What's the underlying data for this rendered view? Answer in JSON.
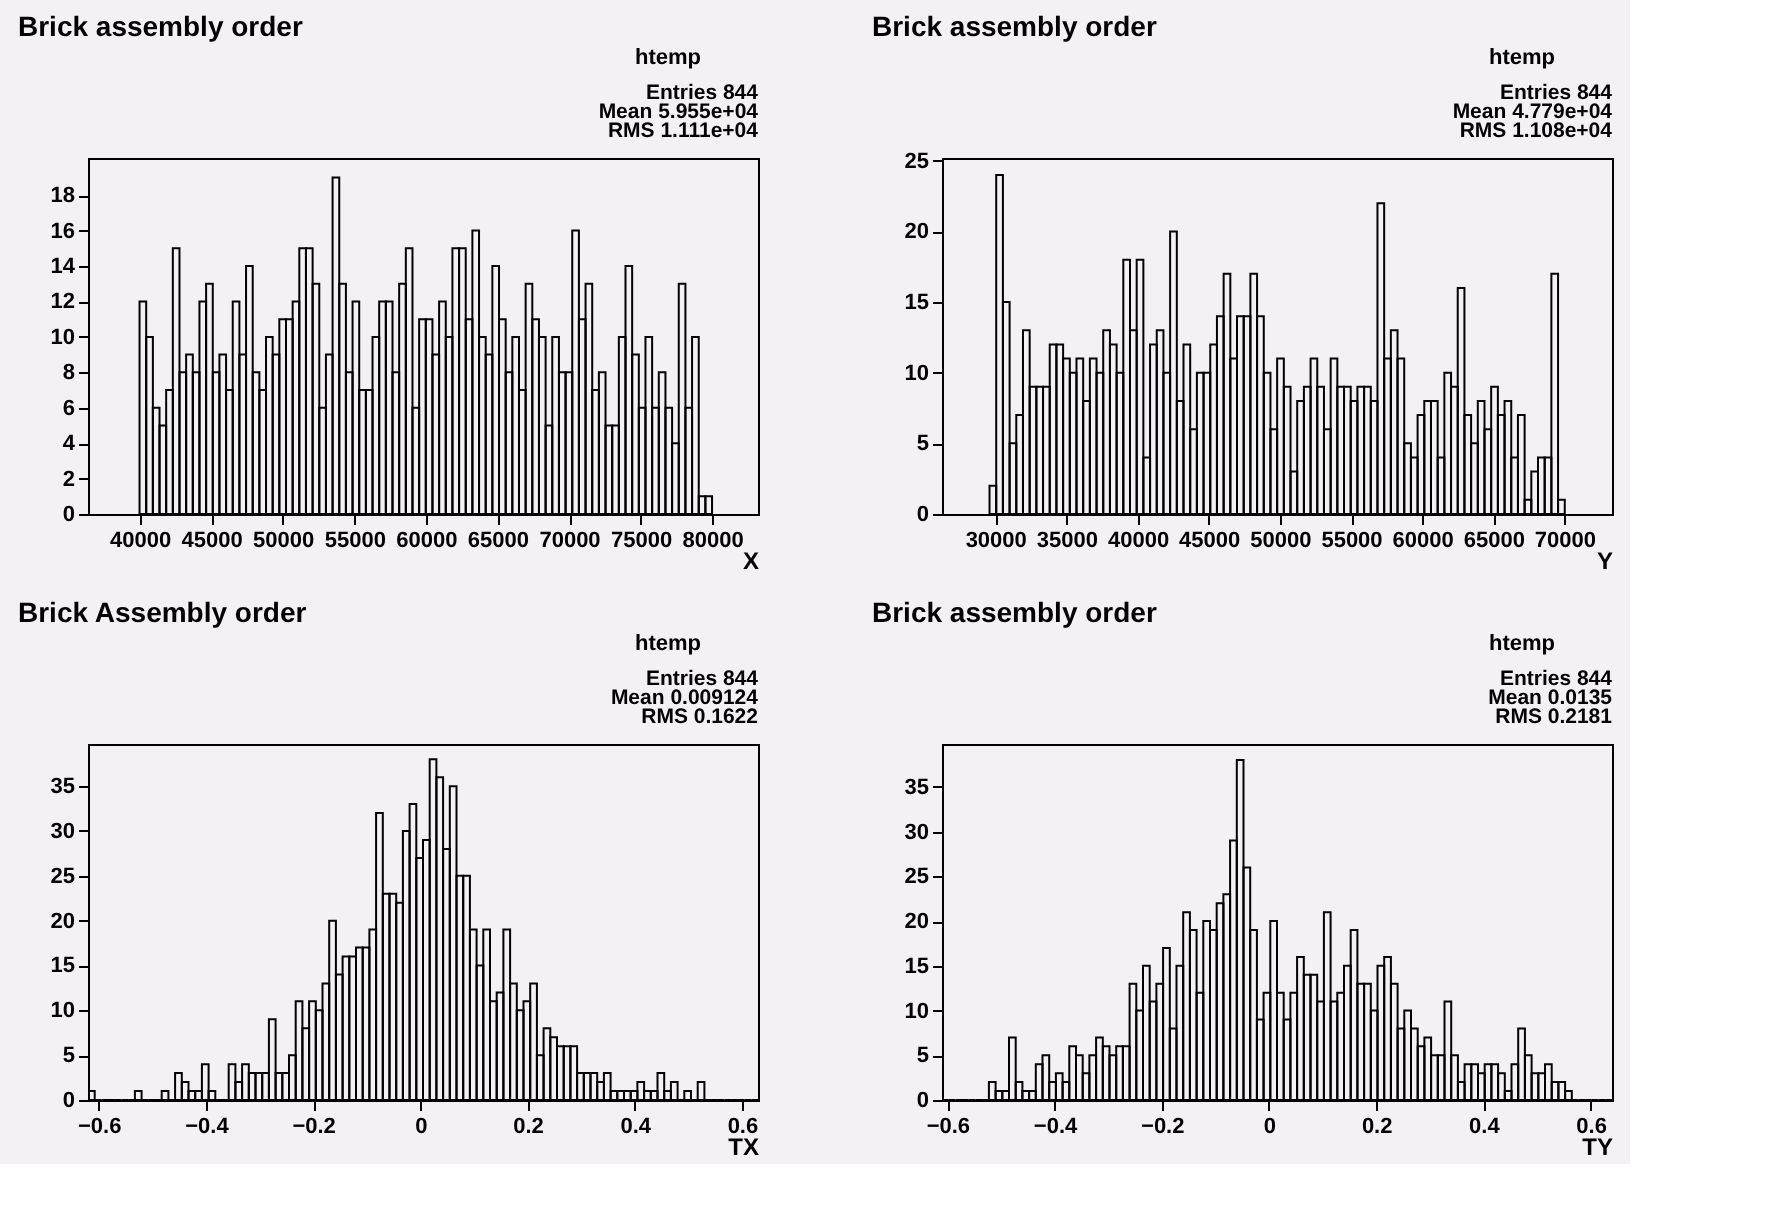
{
  "chart_data": [
    {
      "type": "histogram",
      "title": "Brick assembly order",
      "xlabel": "X",
      "color": "#000000",
      "grid": false,
      "annotations": [
        "htemp",
        "Entries 844",
        "Mean 5.955e+04",
        "RMS 1.111e+04"
      ],
      "xlim": [
        36400,
        83200
      ],
      "xticks": [
        40000,
        45000,
        50000,
        55000,
        60000,
        65000,
        70000,
        75000,
        80000
      ],
      "ylim": [
        0,
        20.1
      ],
      "yticks": [
        0,
        2,
        4,
        6,
        8,
        10,
        12,
        14,
        16,
        18
      ],
      "bins": [
        40000,
        40465,
        40930,
        41395,
        41860,
        42325,
        42790,
        43255,
        43720,
        44185,
        44650,
        45115,
        45580,
        46045,
        46510,
        46975,
        47440,
        47905,
        48370,
        48835,
        49300,
        49765,
        50230,
        50695,
        51160,
        51625,
        52090,
        52555,
        53020,
        53485,
        53950,
        54415,
        54880,
        55345,
        55810,
        56275,
        56740,
        57205,
        57670,
        58135,
        58600,
        59065,
        59530,
        59995,
        60460,
        60925,
        61390,
        61855,
        62320,
        62785,
        63250,
        63715,
        64180,
        64645,
        65110,
        65575,
        66040,
        66505,
        66970,
        67435,
        67900,
        68365,
        68830,
        69295,
        69760,
        70225,
        70690,
        71155,
        71620,
        72085,
        72550,
        73015,
        73480,
        73945,
        74410,
        74875,
        75340,
        75805,
        76270,
        76735,
        77200,
        77665,
        78130,
        78595,
        79060,
        79525,
        79990
      ],
      "values": [
        12,
        10,
        6,
        5,
        7,
        15,
        8,
        9,
        8,
        12,
        13,
        8,
        9,
        7,
        12,
        9,
        14,
        8,
        7,
        10,
        9,
        11,
        11,
        12,
        15,
        15,
        13,
        6,
        9,
        19,
        13,
        8,
        12,
        7,
        7,
        10,
        12,
        12,
        8,
        13,
        15,
        6,
        11,
        11,
        9,
        12,
        10,
        15,
        15,
        11,
        16,
        10,
        9,
        14,
        11,
        8,
        10,
        7,
        13,
        11,
        10,
        5,
        10,
        8,
        8,
        16,
        11,
        13,
        7,
        8,
        5,
        5,
        10,
        14,
        9,
        6,
        10,
        6,
        8,
        6,
        4,
        13,
        6,
        10,
        1,
        1
      ]
    },
    {
      "type": "histogram",
      "title": "Brick assembly order",
      "xlabel": "Y",
      "color": "#000000",
      "grid": false,
      "annotations": [
        "htemp",
        "Entries 844",
        "Mean 4.779e+04",
        "RMS 1.108e+04"
      ],
      "xlim": [
        26260,
        73340
      ],
      "xticks": [
        30000,
        35000,
        40000,
        45000,
        50000,
        55000,
        60000,
        65000,
        70000
      ],
      "ylim": [
        0,
        25.2
      ],
      "yticks": [
        0,
        5,
        10,
        15,
        20,
        25
      ],
      "bins": [
        29600,
        30070,
        30540,
        31010,
        31480,
        31950,
        32420,
        32890,
        33360,
        33830,
        34300,
        34770,
        35240,
        35710,
        36180,
        36650,
        37120,
        37590,
        38060,
        38530,
        39000,
        39470,
        39940,
        40410,
        40880,
        41350,
        41820,
        42290,
        42760,
        43230,
        43700,
        44170,
        44640,
        45110,
        45580,
        46050,
        46520,
        46990,
        47460,
        47930,
        48400,
        48870,
        49340,
        49810,
        50280,
        50750,
        51220,
        51690,
        52160,
        52630,
        53100,
        53570,
        54040,
        54510,
        54980,
        55450,
        55920,
        56390,
        56860,
        57330,
        57800,
        58270,
        58740,
        59210,
        59680,
        60150,
        60620,
        61090,
        61560,
        62030,
        62500,
        62970,
        63440,
        63910,
        64380,
        64850,
        65320,
        65790,
        66260,
        66730,
        67200,
        67670,
        68140,
        68610,
        69080,
        69550,
        70020
      ],
      "values": [
        2,
        24,
        15,
        5,
        7,
        13,
        9,
        9,
        9,
        12,
        12,
        11,
        10,
        11,
        8,
        11,
        10,
        13,
        12,
        10,
        18,
        13,
        18,
        4,
        12,
        13,
        10,
        20,
        8,
        12,
        6,
        10,
        10,
        12,
        14,
        17,
        11,
        14,
        14,
        17,
        14,
        10,
        6,
        11,
        9,
        3,
        8,
        9,
        11,
        9,
        6,
        11,
        9,
        9,
        8,
        9,
        9,
        8,
        22,
        11,
        13,
        11,
        5,
        4,
        7,
        8,
        8,
        4,
        10,
        9,
        16,
        7,
        5,
        8,
        6,
        9,
        7,
        8,
        4,
        7,
        1,
        3,
        4,
        4,
        17,
        1
      ]
    },
    {
      "type": "histogram",
      "title": "Brick Assembly order",
      "xlabel": "TX",
      "color": "#000000",
      "grid": false,
      "annotations": [
        "htemp",
        "Entries 844",
        "Mean 0.009124",
        "RMS 0.1622"
      ],
      "xlim": [
        -0.62,
        0.63
      ],
      "xticks": [
        -0.6,
        -0.4,
        -0.2,
        0,
        0.2,
        0.4,
        0.6
      ],
      "ylim": [
        0,
        39.7
      ],
      "yticks": [
        0,
        5,
        10,
        15,
        20,
        25,
        30,
        35
      ],
      "bins": [
        -0.62,
        -0.6075,
        -0.595,
        -0.5825,
        -0.57,
        -0.5575,
        -0.545,
        -0.5325,
        -0.52,
        -0.5075,
        -0.495,
        -0.4825,
        -0.47,
        -0.4575,
        -0.445,
        -0.4325,
        -0.42,
        -0.4075,
        -0.395,
        -0.3825,
        -0.37,
        -0.3575,
        -0.345,
        -0.3325,
        -0.32,
        -0.3075,
        -0.295,
        -0.2825,
        -0.27,
        -0.2575,
        -0.245,
        -0.2325,
        -0.22,
        -0.2075,
        -0.195,
        -0.1825,
        -0.17,
        -0.1575,
        -0.145,
        -0.1325,
        -0.12,
        -0.1075,
        -0.095,
        -0.0825,
        -0.07,
        -0.0575,
        -0.045,
        -0.0325,
        -0.02,
        -0.0075,
        0.005,
        0.0175,
        0.03,
        0.0425,
        0.055,
        0.0675,
        0.08,
        0.0925,
        0.105,
        0.1175,
        0.13,
        0.1425,
        0.155,
        0.1675,
        0.18,
        0.1925,
        0.205,
        0.2175,
        0.23,
        0.2425,
        0.255,
        0.2675,
        0.28,
        0.2925,
        0.305,
        0.3175,
        0.33,
        0.3425,
        0.355,
        0.3675,
        0.38,
        0.3925,
        0.405,
        0.4175,
        0.43,
        0.4425,
        0.455,
        0.4675,
        0.48,
        0.4925,
        0.505,
        0.5175,
        0.53,
        0.5425,
        0.555,
        0.5675,
        0.58,
        0.5925,
        0.605,
        0.6175,
        0.63
      ],
      "values": [
        1,
        0,
        0,
        0,
        0,
        0,
        0,
        1,
        0,
        0,
        0,
        1,
        0,
        3,
        2,
        1,
        1,
        4,
        1,
        0,
        0,
        4,
        2,
        4,
        3,
        3,
        3,
        9,
        3,
        3,
        5,
        11,
        8,
        11,
        10,
        13,
        20,
        14,
        16,
        16,
        17,
        17,
        19,
        32,
        23,
        23,
        22,
        30,
        33,
        27,
        29,
        38,
        36,
        28,
        35,
        25,
        25,
        19,
        15,
        19,
        11,
        12,
        19,
        13,
        10,
        11,
        13,
        5,
        8,
        7,
        6,
        6,
        6,
        3,
        3,
        3,
        2,
        3,
        1,
        1,
        1,
        1,
        2,
        1,
        1,
        3,
        1,
        2,
        0,
        1,
        0,
        2,
        0,
        0,
        0,
        0,
        0,
        0,
        0,
        0
      ]
    },
    {
      "type": "histogram",
      "title": "Brick assembly order",
      "xlabel": "TY",
      "color": "#000000",
      "grid": false,
      "annotations": [
        "htemp",
        "Entries 844",
        "Mean 0.0135",
        "RMS 0.2181"
      ],
      "xlim": [
        -0.61,
        0.64
      ],
      "xticks": [
        -0.6,
        -0.4,
        -0.2,
        0,
        0.2,
        0.4,
        0.6
      ],
      "ylim": [
        0,
        39.8
      ],
      "yticks": [
        0,
        5,
        10,
        15,
        20,
        25,
        30,
        35
      ],
      "bins": [
        -0.61,
        -0.5975,
        -0.585,
        -0.5725,
        -0.56,
        -0.5475,
        -0.535,
        -0.5225,
        -0.51,
        -0.4975,
        -0.485,
        -0.4725,
        -0.46,
        -0.4475,
        -0.435,
        -0.4225,
        -0.41,
        -0.3975,
        -0.385,
        -0.3725,
        -0.36,
        -0.3475,
        -0.335,
        -0.3225,
        -0.31,
        -0.2975,
        -0.285,
        -0.2725,
        -0.26,
        -0.2475,
        -0.235,
        -0.2225,
        -0.21,
        -0.1975,
        -0.185,
        -0.1725,
        -0.16,
        -0.1475,
        -0.135,
        -0.1225,
        -0.11,
        -0.0975,
        -0.085,
        -0.0725,
        -0.06,
        -0.0475,
        -0.035,
        -0.0225,
        -0.01,
        0.0025,
        0.015,
        0.0275,
        0.04,
        0.0525,
        0.065,
        0.0775,
        0.09,
        0.1025,
        0.115,
        0.1275,
        0.14,
        0.1525,
        0.165,
        0.1775,
        0.19,
        0.2025,
        0.215,
        0.2275,
        0.24,
        0.2525,
        0.265,
        0.2775,
        0.29,
        0.3025,
        0.315,
        0.3275,
        0.34,
        0.3525,
        0.365,
        0.3775,
        0.39,
        0.4025,
        0.415,
        0.4275,
        0.44,
        0.4525,
        0.465,
        0.4775,
        0.49,
        0.5025,
        0.515,
        0.5275,
        0.54,
        0.5525,
        0.565,
        0.5775,
        0.59,
        0.6025,
        0.615,
        0.6275,
        0.64
      ],
      "values": [
        0,
        0,
        0,
        0,
        0,
        0,
        0,
        2,
        1,
        1,
        7,
        2,
        1,
        1,
        4,
        5,
        2,
        3,
        2,
        6,
        5,
        3,
        5,
        7,
        6,
        5,
        6,
        6,
        13,
        10,
        15,
        11,
        13,
        17,
        8,
        15,
        21,
        19,
        12,
        20,
        19,
        22,
        23,
        29,
        38,
        26,
        19,
        9,
        12,
        20,
        12,
        9,
        12,
        16,
        14,
        14,
        11,
        21,
        11,
        12,
        15,
        19,
        13,
        13,
        10,
        15,
        16,
        13,
        8,
        10,
        8,
        6,
        7,
        5,
        5,
        11,
        5,
        2,
        4,
        4,
        3,
        4,
        4,
        3,
        1,
        4,
        8,
        5,
        3,
        3,
        4,
        2,
        2,
        1,
        0,
        0,
        0,
        0,
        0,
        0
      ]
    }
  ]
}
